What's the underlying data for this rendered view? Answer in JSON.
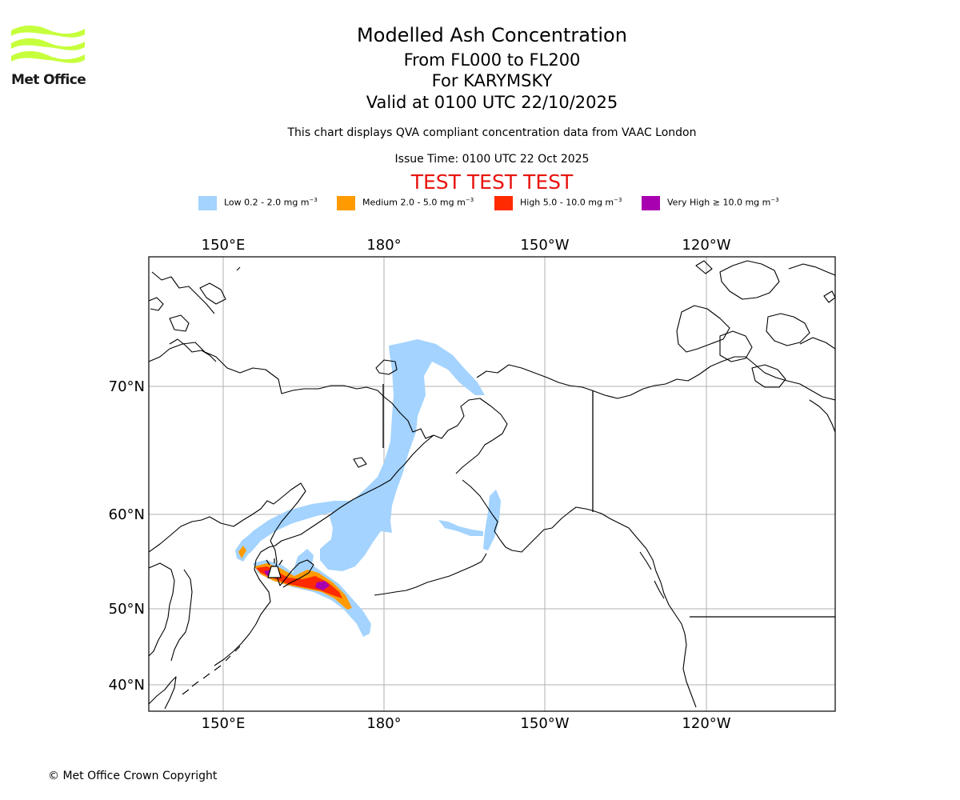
{
  "logo": {
    "text": "Met Office",
    "color": "#c6ff3c"
  },
  "titles": {
    "main": "Modelled Ash Concentration",
    "levels": "From FL000 to FL200",
    "volcano": "For KARYMSKY",
    "valid": "Valid at 0100 UTC 22/10/2025",
    "description": "This chart displays QVA compliant concentration data from VAAC London",
    "issue": "Issue Time: 0100 UTC 22 Oct 2025",
    "test": "TEST TEST TEST"
  },
  "legend": [
    {
      "label": "Low 0.2 - 2.0 mg m",
      "unit_power": "−3",
      "color": "#a3d3fe"
    },
    {
      "label": "Medium 2.0 - 5.0 mg m",
      "unit_power": "−3",
      "color": "#ff9a00"
    },
    {
      "label": "High 5.0 - 10.0 mg m",
      "unit_power": "−3",
      "color": "#ff2a00"
    },
    {
      "label": "Very High  ≥  10.0 mg m",
      "unit_power": "−3",
      "color": "#a800b0"
    }
  ],
  "map": {
    "longitude_ticks": [
      "150°E",
      "180°",
      "150°W",
      "120°W"
    ],
    "latitude_ticks": [
      "70°N",
      "60°N",
      "50°N",
      "40°N"
    ]
  },
  "copyright": "© Met Office Crown Copyright"
}
